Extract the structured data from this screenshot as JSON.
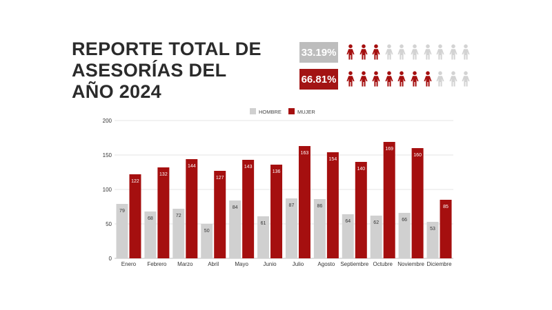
{
  "title_lines": [
    "REPORTE TOTAL DE",
    "ASESORÍAS DEL",
    "AÑO 2024"
  ],
  "stats": {
    "hombre": {
      "percent": "33.19%",
      "filled": 3,
      "total": 10,
      "color": "#bdbdbd"
    },
    "mujer": {
      "percent": "66.81%",
      "filled": 7,
      "total": 10,
      "color": "#a31414"
    }
  },
  "colors": {
    "hombre": "#d0d0d0",
    "mujer": "#a50f0f",
    "empty_icon": "#d3d3d3",
    "pct_bg_hombre": "#bdbdbd",
    "pct_bg_mujer": "#a31414"
  },
  "chart_data": {
    "type": "bar",
    "title": "",
    "xlabel": "",
    "ylabel": "",
    "ylim": [
      0,
      200
    ],
    "yticks": [
      0,
      50,
      100,
      150,
      200
    ],
    "grid": true,
    "legend_position": "top-center",
    "categories": [
      "Enero",
      "Febrero",
      "Marzo",
      "Abril",
      "Mayo",
      "Junio",
      "Julio",
      "Agosto",
      "Septiembre",
      "Octubre",
      "Noviembre",
      "Diciembre"
    ],
    "series": [
      {
        "name": "HOMBRE",
        "color": "#d0d0d0",
        "label_color": "#333333",
        "values": [
          79,
          68,
          72,
          50,
          84,
          61,
          87,
          86,
          64,
          62,
          66,
          53
        ]
      },
      {
        "name": "MUJER",
        "color": "#a50f0f",
        "label_color": "#ffffff",
        "values": [
          122,
          132,
          144,
          127,
          143,
          136,
          163,
          154,
          140,
          169,
          160,
          85
        ]
      }
    ]
  }
}
